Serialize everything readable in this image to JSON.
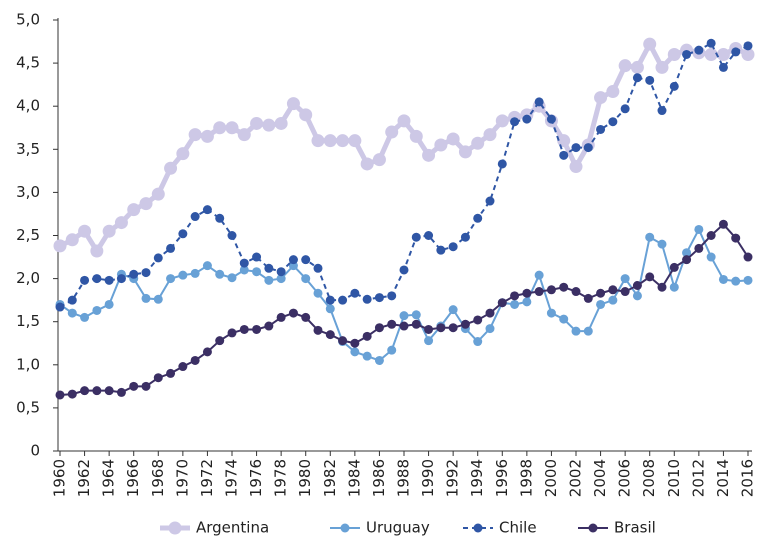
{
  "chart_data": {
    "type": "line",
    "x": [
      1960,
      1961,
      1962,
      1963,
      1964,
      1965,
      1966,
      1967,
      1968,
      1969,
      1970,
      1971,
      1972,
      1973,
      1974,
      1975,
      1976,
      1977,
      1978,
      1979,
      1980,
      1981,
      1982,
      1983,
      1984,
      1985,
      1986,
      1987,
      1988,
      1989,
      1990,
      1991,
      1992,
      1993,
      1994,
      1995,
      1996,
      1997,
      1998,
      1999,
      2000,
      2001,
      2002,
      2003,
      2004,
      2005,
      2006,
      2007,
      2008,
      2009,
      2010,
      2011,
      2012,
      2013,
      2014,
      2015,
      2016
    ],
    "xlim": [
      1960,
      2016
    ],
    "xticks": [
      1960,
      1962,
      1964,
      1966,
      1968,
      1970,
      1972,
      1974,
      1976,
      1978,
      1980,
      1982,
      1984,
      1986,
      1988,
      1990,
      1992,
      1994,
      1996,
      1998,
      2000,
      2002,
      2004,
      2006,
      2008,
      2010,
      2012,
      2014,
      2016
    ],
    "ylim": [
      0,
      5
    ],
    "yticks": [
      0,
      {
        "value": 0.5,
        "label": "0,5"
      },
      {
        "value": 1,
        "label": "1,0"
      },
      {
        "value": 1.5,
        "label": "1,5"
      },
      {
        "value": 2,
        "label": "2,0"
      },
      {
        "value": 2.5,
        "label": "2,5"
      },
      {
        "value": 3,
        "label": "3,0"
      },
      {
        "value": 3.5,
        "label": "3,5"
      },
      {
        "value": 4,
        "label": "4,0"
      },
      {
        "value": 4.5,
        "label": "4,5"
      },
      {
        "value": 5,
        "label": "5,0"
      }
    ],
    "grid": false,
    "legend": "bottom",
    "series": [
      {
        "name": "Argentina",
        "color": "#cdc8e6",
        "linestyle": "solid",
        "values": [
          2.38,
          2.45,
          2.55,
          2.32,
          2.55,
          2.65,
          2.8,
          2.87,
          2.98,
          3.28,
          3.45,
          3.67,
          3.65,
          3.75,
          3.75,
          3.67,
          3.8,
          3.78,
          3.8,
          4.03,
          3.9,
          3.6,
          3.6,
          3.6,
          3.6,
          3.33,
          3.38,
          3.7,
          3.83,
          3.65,
          3.43,
          3.55,
          3.62,
          3.47,
          3.57,
          3.67,
          3.83,
          3.87,
          3.9,
          4.0,
          3.83,
          3.6,
          3.3,
          3.55,
          4.1,
          4.17,
          4.47,
          4.45,
          4.72,
          4.45,
          4.6,
          4.65,
          4.62,
          4.6,
          4.6,
          4.67,
          4.6
        ]
      },
      {
        "name": "Uruguay",
        "color": "#68a1d6",
        "linestyle": "solid",
        "values": [
          1.7,
          1.6,
          1.55,
          1.63,
          1.7,
          2.05,
          2.0,
          1.77,
          1.76,
          2.0,
          2.04,
          2.06,
          2.15,
          2.05,
          2.01,
          2.1,
          2.08,
          1.98,
          2.0,
          2.15,
          2.0,
          1.83,
          1.65,
          1.27,
          1.15,
          1.1,
          1.05,
          1.17,
          1.57,
          1.58,
          1.28,
          1.45,
          1.64,
          1.42,
          1.27,
          1.42,
          1.72,
          1.7,
          1.73,
          2.04,
          1.6,
          1.53,
          1.39,
          1.39,
          1.7,
          1.75,
          2.0,
          1.8,
          2.48,
          2.4,
          1.9,
          2.3,
          2.57,
          2.25,
          1.99,
          1.97,
          1.98
        ]
      },
      {
        "name": "Chile",
        "color": "#2f56a5",
        "linestyle": "dashed",
        "values": [
          1.67,
          1.75,
          1.98,
          2.0,
          1.98,
          2.0,
          2.05,
          2.07,
          2.24,
          2.35,
          2.52,
          2.72,
          2.8,
          2.7,
          2.5,
          2.18,
          2.25,
          2.12,
          2.08,
          2.22,
          2.22,
          2.12,
          1.75,
          1.75,
          1.83,
          1.76,
          1.78,
          1.8,
          2.1,
          2.48,
          2.5,
          2.33,
          2.37,
          2.48,
          2.7,
          2.9,
          3.33,
          3.82,
          3.85,
          4.05,
          3.85,
          3.43,
          3.52,
          3.52,
          3.73,
          3.82,
          3.97,
          4.33,
          4.3,
          3.95,
          4.23,
          4.6,
          4.65,
          4.73,
          4.45,
          4.63,
          4.7
        ]
      },
      {
        "name": "Brasil",
        "color": "#3b2f64",
        "linestyle": "solid",
        "values": [
          0.65,
          0.66,
          0.7,
          0.7,
          0.7,
          0.68,
          0.75,
          0.75,
          0.85,
          0.9,
          0.98,
          1.05,
          1.15,
          1.28,
          1.37,
          1.41,
          1.41,
          1.45,
          1.55,
          1.6,
          1.55,
          1.4,
          1.35,
          1.28,
          1.25,
          1.33,
          1.43,
          1.47,
          1.45,
          1.47,
          1.41,
          1.43,
          1.43,
          1.47,
          1.52,
          1.6,
          1.72,
          1.8,
          1.83,
          1.85,
          1.87,
          1.9,
          1.85,
          1.77,
          1.83,
          1.87,
          1.85,
          1.92,
          2.02,
          1.9,
          2.13,
          2.22,
          2.35,
          2.5,
          2.63,
          2.47,
          2.25
        ]
      }
    ]
  }
}
